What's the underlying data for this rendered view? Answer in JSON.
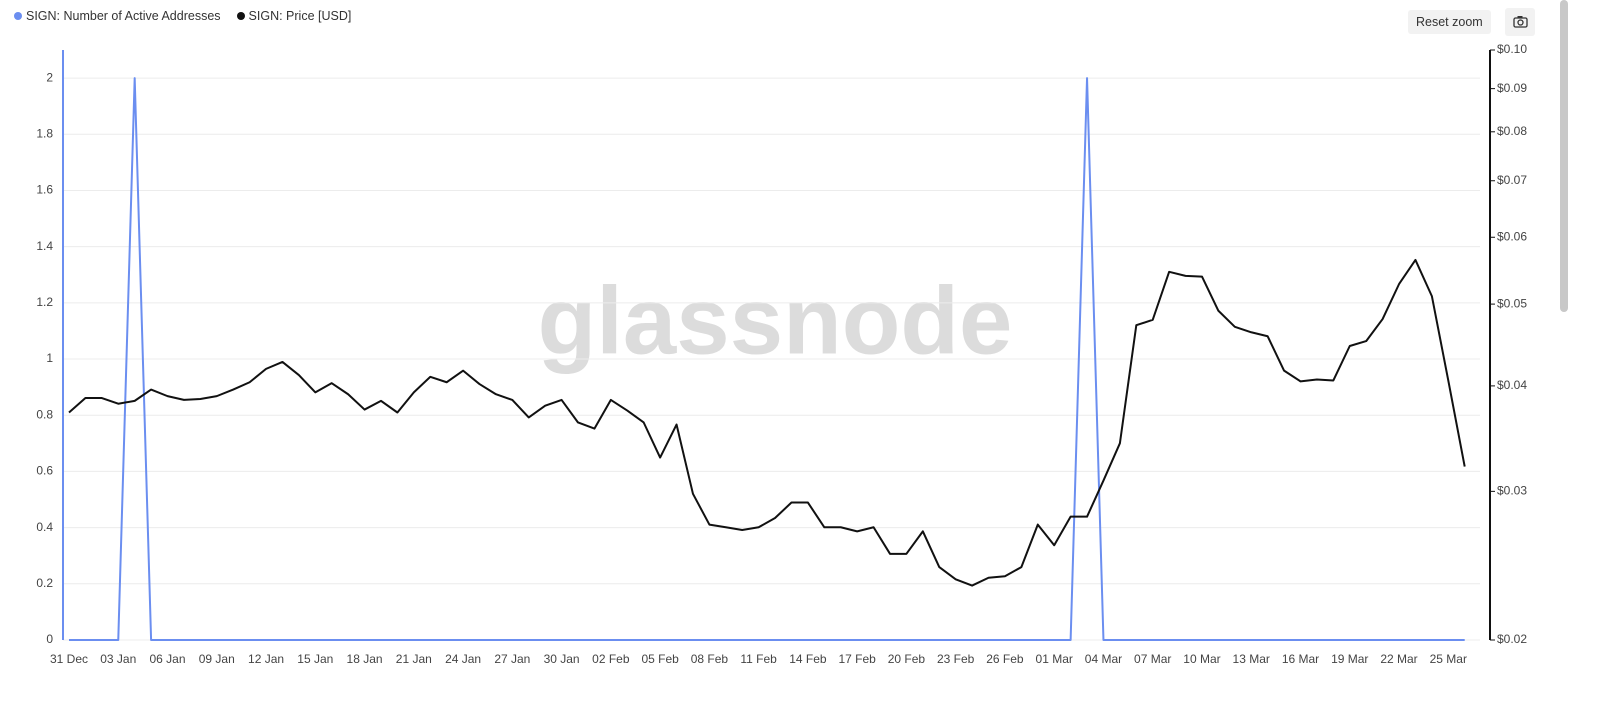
{
  "chart_data": {
    "type": "line",
    "watermark": "glassnode",
    "categories": [
      "31 Dec",
      null,
      null,
      "03 Jan",
      null,
      null,
      "06 Jan",
      null,
      null,
      "09 Jan",
      null,
      null,
      "12 Jan",
      null,
      null,
      "15 Jan",
      null,
      null,
      "18 Jan",
      null,
      null,
      "21 Jan",
      null,
      null,
      "24 Jan",
      null,
      null,
      "27 Jan",
      null,
      null,
      "30 Jan",
      null,
      null,
      "02 Feb",
      null,
      null,
      "05 Feb",
      null,
      null,
      "08 Feb",
      null,
      null,
      "11 Feb",
      null,
      null,
      "14 Feb",
      null,
      null,
      "17 Feb",
      null,
      null,
      "20 Feb",
      null,
      null,
      "23 Feb",
      null,
      null,
      "26 Feb",
      null,
      null,
      "01 Mar",
      null,
      null,
      "04 Mar",
      null,
      null,
      "07 Mar",
      null,
      null,
      "10 Mar",
      null,
      null,
      "13 Mar",
      null,
      null,
      "16 Mar",
      null,
      null,
      "19 Mar",
      null,
      null,
      "22 Mar",
      null,
      null,
      "25 Mar",
      null
    ],
    "series": [
      {
        "name": "SIGN: Number of Active Addresses",
        "color": "#6b8ef0",
        "values": [
          0,
          0,
          0,
          0,
          2,
          0,
          0,
          0,
          0,
          0,
          0,
          0,
          0,
          0,
          0,
          0,
          0,
          0,
          0,
          0,
          0,
          0,
          0,
          0,
          0,
          0,
          0,
          0,
          0,
          0,
          0,
          0,
          0,
          0,
          0,
          0,
          0,
          0,
          0,
          0,
          0,
          0,
          0,
          0,
          0,
          0,
          0,
          0,
          0,
          0,
          0,
          0,
          0,
          0,
          0,
          0,
          0,
          0,
          0,
          0,
          0,
          0,
          2,
          0,
          0,
          0,
          0,
          0,
          0,
          0,
          0,
          0,
          0,
          0,
          0,
          0,
          0,
          0,
          0,
          0,
          0,
          0,
          0,
          0,
          0,
          0
        ]
      },
      {
        "name": "SIGN: Price [USD]",
        "color": "#111111",
        "axis": "y2",
        "values": [
          0.0372,
          0.0387,
          0.0387,
          0.0381,
          0.0384,
          0.0396,
          0.0389,
          0.0385,
          0.0386,
          0.0389,
          0.0396,
          0.0404,
          0.0419,
          0.0427,
          0.0412,
          0.0393,
          0.0403,
          0.0391,
          0.0375,
          0.0384,
          0.0372,
          0.0393,
          0.041,
          0.0404,
          0.0417,
          0.0402,
          0.0391,
          0.0385,
          0.0367,
          0.0379,
          0.0385,
          0.0362,
          0.0356,
          0.0385,
          0.0374,
          0.0362,
          0.0329,
          0.036,
          0.0298,
          0.0274,
          0.0272,
          0.027,
          0.0272,
          0.0279,
          0.0291,
          0.0291,
          0.0272,
          0.0272,
          0.0269,
          0.0272,
          0.0253,
          0.0253,
          0.0269,
          0.0244,
          0.0236,
          0.0232,
          0.0237,
          0.0238,
          0.0244,
          0.0274,
          0.0259,
          0.028,
          0.028,
          0.0309,
          0.0342,
          0.0472,
          0.0479,
          0.0546,
          0.054,
          0.0539,
          0.0491,
          0.047,
          0.0463,
          0.0458,
          0.0417,
          0.0405,
          0.0407,
          0.0406,
          0.0446,
          0.0452,
          0.048,
          0.0528,
          0.0564,
          0.0511,
          0.0406,
          0.0321
        ]
      }
    ],
    "ylim": [
      0,
      2.1
    ],
    "yticks": [
      0,
      0.2,
      0.4,
      0.6,
      0.8,
      1,
      1.2,
      1.4,
      1.6,
      1.8,
      2
    ],
    "y2lim": [
      0.02,
      0.1
    ],
    "y2scale": "log",
    "y2ticks": [
      {
        "value": 0.02,
        "label": "$0.02"
      },
      {
        "value": 0.03,
        "label": "$0.03"
      },
      {
        "value": 0.04,
        "label": "$0.04"
      },
      {
        "value": 0.05,
        "label": "$0.05"
      },
      {
        "value": 0.06,
        "label": "$0.06"
      },
      {
        "value": 0.07,
        "label": "$0.07"
      },
      {
        "value": 0.08,
        "label": "$0.08"
      },
      {
        "value": 0.09,
        "label": "$0.09"
      },
      {
        "value": 0.1,
        "label": "$0.10"
      }
    ],
    "grid": true
  },
  "controls": {
    "reset_zoom": "Reset zoom"
  }
}
